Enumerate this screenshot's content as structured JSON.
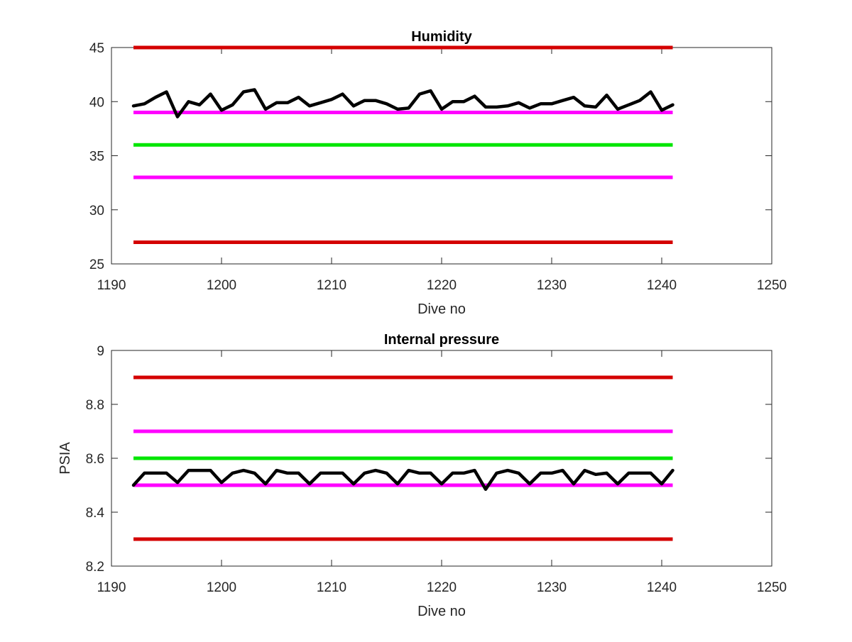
{
  "chart_data": [
    {
      "type": "line",
      "title": "Humidity",
      "xlabel": "Dive no",
      "ylabel": "",
      "xlim": [
        1190,
        1250
      ],
      "ylim": [
        25,
        45
      ],
      "xticks": [
        1190,
        1200,
        1210,
        1220,
        1230,
        1240,
        1250
      ],
      "yticks": [
        25,
        30,
        35,
        40,
        45
      ],
      "xtick_labels": [
        "1190",
        "1200",
        "1210",
        "1220",
        "1230",
        "1240",
        "1250"
      ],
      "ytick_labels": [
        "25",
        "30",
        "35",
        "40",
        "45"
      ],
      "grid": false,
      "reference_lines": [
        {
          "y": 45,
          "x": [
            1192,
            1241
          ],
          "color": "#d40000"
        },
        {
          "y": 39,
          "x": [
            1192,
            1241
          ],
          "color": "#ff00ff"
        },
        {
          "y": 36,
          "x": [
            1192,
            1241
          ],
          "color": "#00e600"
        },
        {
          "y": 33,
          "x": [
            1192,
            1241
          ],
          "color": "#ff00ff"
        },
        {
          "y": 27,
          "x": [
            1192,
            1241
          ],
          "color": "#d40000"
        }
      ],
      "series": [
        {
          "color": "#000000",
          "x": [
            1192,
            1193,
            1194,
            1195,
            1196,
            1197,
            1198,
            1199,
            1200,
            1201,
            1202,
            1203,
            1204,
            1205,
            1206,
            1207,
            1208,
            1209,
            1210,
            1211,
            1212,
            1213,
            1214,
            1215,
            1216,
            1217,
            1218,
            1219,
            1220,
            1221,
            1222,
            1223,
            1224,
            1225,
            1226,
            1227,
            1228,
            1229,
            1230,
            1231,
            1232,
            1233,
            1234,
            1235,
            1236,
            1237,
            1238,
            1239,
            1240,
            1241
          ],
          "values": [
            39.6,
            39.8,
            40.4,
            40.9,
            38.6,
            40.0,
            39.7,
            40.7,
            39.2,
            39.7,
            40.9,
            41.1,
            39.3,
            39.9,
            39.9,
            40.4,
            39.6,
            39.9,
            40.2,
            40.7,
            39.6,
            40.1,
            40.1,
            39.8,
            39.3,
            39.4,
            40.7,
            41.0,
            39.3,
            40.0,
            40.0,
            40.5,
            39.5,
            39.5,
            39.6,
            39.9,
            39.4,
            39.8,
            39.8,
            40.1,
            40.4,
            39.6,
            39.5,
            40.6,
            39.3,
            39.7,
            40.1,
            40.9,
            39.2,
            39.7
          ]
        }
      ]
    },
    {
      "type": "line",
      "title": "Internal pressure",
      "xlabel": "Dive no",
      "ylabel": "PSIA",
      "xlim": [
        1190,
        1250
      ],
      "ylim": [
        8.2,
        9.0
      ],
      "xticks": [
        1190,
        1200,
        1210,
        1220,
        1230,
        1240,
        1250
      ],
      "yticks": [
        8.2,
        8.4,
        8.6,
        8.8,
        9.0
      ],
      "xtick_labels": [
        "1190",
        "1200",
        "1210",
        "1220",
        "1230",
        "1240",
        "1250"
      ],
      "ytick_labels": [
        "8.2",
        "8.4",
        "8.6",
        "8.8",
        "9"
      ],
      "grid": false,
      "reference_lines": [
        {
          "y": 8.9,
          "x": [
            1192,
            1241
          ],
          "color": "#d40000"
        },
        {
          "y": 8.7,
          "x": [
            1192,
            1241
          ],
          "color": "#ff00ff"
        },
        {
          "y": 8.6,
          "x": [
            1192,
            1241
          ],
          "color": "#00e600"
        },
        {
          "y": 8.5,
          "x": [
            1192,
            1241
          ],
          "color": "#ff00ff"
        },
        {
          "y": 8.3,
          "x": [
            1192,
            1241
          ],
          "color": "#d40000"
        }
      ],
      "series": [
        {
          "color": "#000000",
          "x": [
            1192,
            1193,
            1194,
            1195,
            1196,
            1197,
            1198,
            1199,
            1200,
            1201,
            1202,
            1203,
            1204,
            1205,
            1206,
            1207,
            1208,
            1209,
            1210,
            1211,
            1212,
            1213,
            1214,
            1215,
            1216,
            1217,
            1218,
            1219,
            1220,
            1221,
            1222,
            1223,
            1224,
            1225,
            1226,
            1227,
            1228,
            1229,
            1230,
            1231,
            1232,
            1233,
            1234,
            1235,
            1236,
            1237,
            1238,
            1239,
            1240,
            1241
          ],
          "values": [
            8.5,
            8.545,
            8.545,
            8.545,
            8.51,
            8.555,
            8.555,
            8.555,
            8.51,
            8.545,
            8.555,
            8.545,
            8.505,
            8.555,
            8.545,
            8.545,
            8.505,
            8.545,
            8.545,
            8.545,
            8.505,
            8.545,
            8.555,
            8.545,
            8.505,
            8.555,
            8.545,
            8.545,
            8.505,
            8.545,
            8.545,
            8.555,
            8.485,
            8.545,
            8.555,
            8.545,
            8.505,
            8.545,
            8.545,
            8.555,
            8.505,
            8.555,
            8.54,
            8.545,
            8.505,
            8.545,
            8.545,
            8.545,
            8.505,
            8.555
          ]
        }
      ]
    }
  ]
}
